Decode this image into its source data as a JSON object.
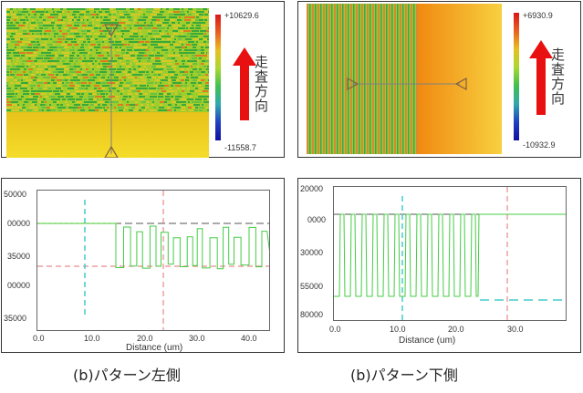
{
  "left": {
    "colorbar": {
      "max_label": "+10629.6",
      "min_label": "-11558.7"
    },
    "scan_direction": "走査方向",
    "profile": {
      "y_ticks": [
        "50000",
        "00000",
        "35000",
        "00000",
        "35000"
      ],
      "x_ticks": [
        "0.0",
        "10.0",
        "20.0",
        "30.0",
        "40.0"
      ],
      "xlabel": "Distance (um)"
    },
    "caption": "(b)パターン左側"
  },
  "right": {
    "colorbar": {
      "max_label": "+6930.9",
      "min_label": "-10932.9"
    },
    "scan_direction": "走査方向",
    "profile": {
      "y_ticks": [
        "20000",
        "0000",
        "30000",
        "55000",
        "80000"
      ],
      "x_ticks": [
        "0.0",
        "10.0",
        "20.0",
        "30.0"
      ],
      "xlabel": "Distance (um)"
    },
    "caption": "(b)パターン下側"
  },
  "colors": {
    "trace": "#44cc44",
    "cursor_blue": "#44cccc",
    "cursor_red": "#e07070",
    "ref_dark": "#555555",
    "scan_arrow": "#e81010"
  }
}
